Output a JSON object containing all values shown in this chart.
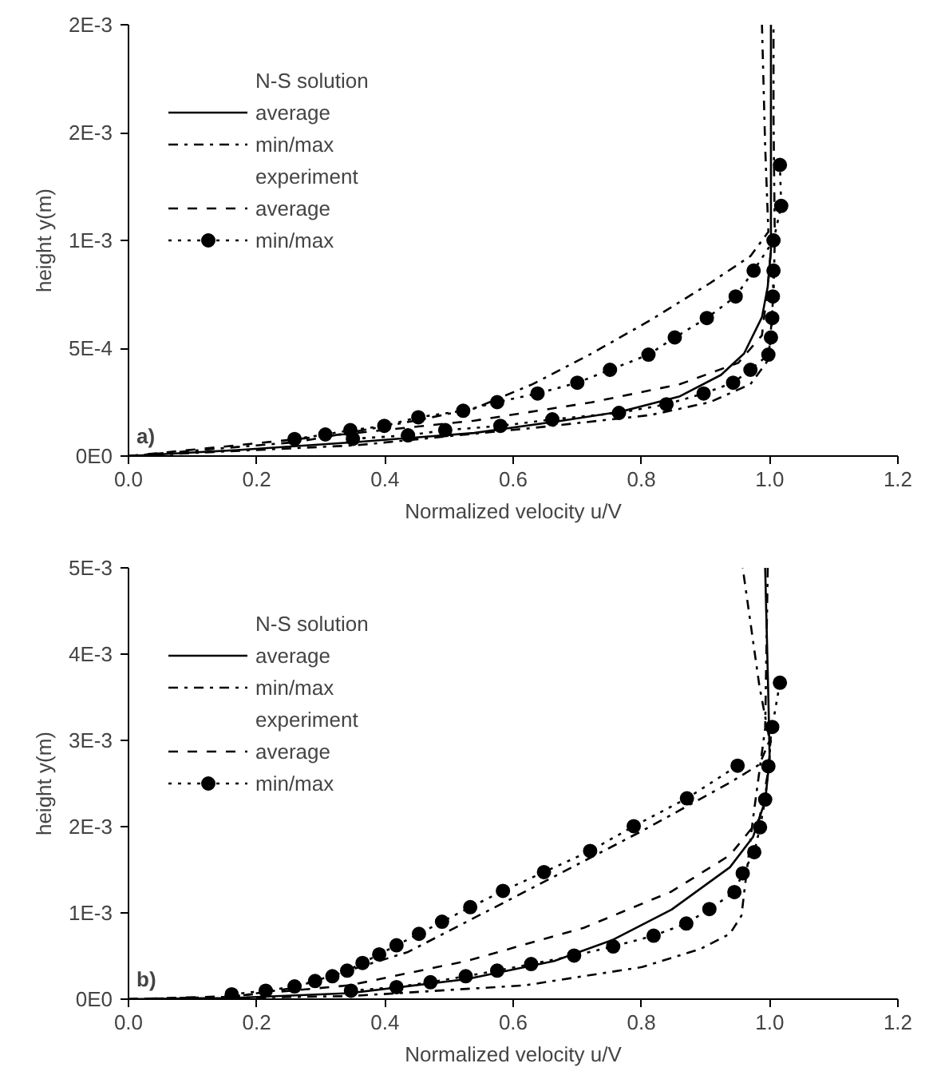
{
  "chart_data": [
    {
      "type": "line",
      "xlabel": "Normalized velocity u/V",
      "ylabel": "height y(m)",
      "annotations": [
        "N-S solution",
        "experiment",
        "a)"
      ],
      "xlim": [
        0,
        1.2
      ],
      "ylim": [
        0,
        0.002
      ],
      "xticks": [
        {
          "value": 0,
          "label": "0.0"
        },
        {
          "value": 0.2,
          "label": "0.2"
        },
        {
          "value": 0.4,
          "label": "0.4"
        },
        {
          "value": 0.6,
          "label": "0.6"
        },
        {
          "value": 0.8,
          "label": "0.8"
        },
        {
          "value": 1.0,
          "label": "1.0"
        },
        {
          "value": 1.2,
          "label": "1.2"
        }
      ],
      "yticks": [
        {
          "value": 0,
          "label": "0E0"
        },
        {
          "value": 0.0005,
          "label": "5E-4"
        },
        {
          "value": 0.001,
          "label": "1E-3"
        },
        {
          "value": 0.0015,
          "label": "2E-3"
        },
        {
          "value": 0.002,
          "label": "2E-3"
        }
      ],
      "legend": "top left",
      "grid": false,
      "series": [
        {
          "name": "average",
          "color": "#000000",
          "line_style": "solid",
          "marker": "none",
          "x": [
            0,
            0.17,
            0.355,
            0.539,
            0.676,
            0.768,
            0.86,
            0.924,
            0.96,
            0.988,
            0.997,
            1.002,
            1.002,
            1.002
          ],
          "values": [
            0,
            2.8e-05,
            6.5e-05,
            0.000107,
            0.000164,
            0.000206,
            0.000277,
            0.000376,
            0.000475,
            0.000644,
            0.000785,
            0.000955,
            0.00129,
            0.002
          ]
        },
        {
          "name": "min/max",
          "color": "#000000",
          "line_style": "dashdot",
          "marker": "none",
          "x": [
            0,
            0.263,
            0.447,
            0.539,
            0.63,
            0.722,
            0.814,
            0.906,
            0.97,
            0.998,
            0.993,
            0.988
          ],
          "values": [
            0,
            6.5e-05,
            0.000164,
            0.00022,
            0.000333,
            0.000475,
            0.00063,
            0.0008,
            0.000927,
            0.00104,
            0.001435,
            0.002
          ]
        },
        {
          "color": "#000000",
          "line_style": "dashdot",
          "marker": "none",
          "x": [
            0,
            0.355,
            0.63,
            0.814,
            0.906,
            0.97,
            0.998,
            1.006,
            1.008,
            1.006,
            1.006
          ],
          "values": [
            0,
            5e-05,
            0.00013,
            0.00019,
            0.000249,
            0.000333,
            0.000446,
            0.00073,
            0.00101,
            0.00158,
            0.002
          ]
        },
        {
          "name": "average",
          "color": "#000000",
          "line_style": "dashed",
          "marker": "none",
          "x": [
            0,
            0.17,
            0.355,
            0.539,
            0.722,
            0.86,
            0.951,
            0.988,
            0.997,
            1.002
          ],
          "values": [
            0,
            5e-05,
            0.000107,
            0.000164,
            0.000249,
            0.000333,
            0.000432,
            0.00056,
            0.000785,
            0.000955
          ]
        },
        {
          "name": "min/max",
          "color": "#000000",
          "line_style": "dotted",
          "marker": "circle",
          "x": [
            0.259,
            0.307,
            0.346,
            0.399,
            0.452,
            0.522,
            0.575,
            0.638,
            0.7,
            0.751,
            0.811,
            0.852,
            0.902,
            0.947,
            0.975,
            1.006,
            1.018,
            1.016
          ],
          "values": [
            7.9e-05,
            0.0001,
            0.00012,
            0.00014,
            0.00018,
            0.00021,
            0.00025,
            0.00029,
            0.00034,
            0.0004,
            0.00047,
            0.00055,
            0.00064,
            0.00074,
            0.00086,
            0.001,
            0.00116,
            0.00135
          ]
        },
        {
          "color": "#000000",
          "line_style": "dotted",
          "marker": "circle",
          "x": [
            0.35,
            0.436,
            0.494,
            0.58,
            0.661,
            0.765,
            0.839,
            0.897,
            0.943,
            0.97,
            0.998,
            1.002,
            1.004,
            1.005,
            1.006
          ],
          "values": [
            8e-05,
            9.6e-05,
            0.00012,
            0.00014,
            0.00017,
            0.0002,
            0.00024,
            0.00029,
            0.00034,
            0.0004,
            0.00047,
            0.00055,
            0.00064,
            0.00074,
            0.00086
          ]
        }
      ]
    },
    {
      "type": "line",
      "xlabel": "Normalized velocity u/V",
      "ylabel": "height y(m)",
      "annotations": [
        "N-S solution",
        "experiment",
        "b)"
      ],
      "xlim": [
        0,
        1.2
      ],
      "ylim": [
        0,
        0.005
      ],
      "xticks": [
        {
          "value": 0,
          "label": "0.0"
        },
        {
          "value": 0.2,
          "label": "0.2"
        },
        {
          "value": 0.4,
          "label": "0.4"
        },
        {
          "value": 0.6,
          "label": "0.6"
        },
        {
          "value": 0.8,
          "label": "0.8"
        },
        {
          "value": 1.0,
          "label": "1.0"
        },
        {
          "value": 1.2,
          "label": "1.2"
        }
      ],
      "yticks": [
        {
          "value": 0,
          "label": "0E0"
        },
        {
          "value": 0.001,
          "label": "1E-3"
        },
        {
          "value": 0.002,
          "label": "2E-3"
        },
        {
          "value": 0.003,
          "label": "3E-3"
        },
        {
          "value": 0.004,
          "label": "4E-3"
        },
        {
          "value": 0.005,
          "label": "5E-3"
        }
      ],
      "legend": "top left",
      "grid": false,
      "series": [
        {
          "name": "average",
          "color": "#000000",
          "line_style": "solid",
          "marker": "none",
          "x": [
            0,
            0.162,
            0.345,
            0.527,
            0.664,
            0.755,
            0.847,
            0.938,
            0.974,
            0.993,
            1.0,
            0.998,
            0.993
          ],
          "values": [
            0,
            1.4e-05,
            7e-05,
            0.000231,
            0.000442,
            0.000687,
            0.001038,
            0.001529,
            0.001879,
            0.0023,
            0.00279,
            0.00349,
            0.005
          ]
        },
        {
          "name": "min/max",
          "color": "#000000",
          "line_style": "dashdot",
          "marker": "none",
          "x": [
            0,
            0.162,
            0.254,
            0.436,
            0.619,
            0.801,
            0.938,
            0.984,
            1.0,
            0.984,
            0.958
          ],
          "values": [
            0,
            2.8e-05,
            0.000126,
            0.000547,
            0.001248,
            0.00195,
            0.00251,
            0.00272,
            0.003,
            0.00363,
            0.005
          ]
        },
        {
          "color": "#000000",
          "line_style": "dashdot",
          "marker": "none",
          "x": [
            0,
            0.345,
            0.619,
            0.801,
            0.892,
            0.938,
            0.956,
            0.974,
            0.993,
            0.997
          ],
          "values": [
            0,
            3.5e-05,
            0.000161,
            0.000372,
            0.000582,
            0.000757,
            0.000968,
            0.00209,
            0.00314,
            0.005
          ]
        },
        {
          "name": "average",
          "color": "#000000",
          "line_style": "dashed",
          "marker": "none",
          "x": [
            0,
            0.162,
            0.345,
            0.527,
            0.71,
            0.847,
            0.938,
            0.984,
            0.998,
            1.002
          ],
          "values": [
            0,
            3.5e-05,
            0.000161,
            0.000442,
            0.000827,
            0.001248,
            0.001669,
            0.00209,
            0.00265,
            0.00307
          ]
        },
        {
          "name": "min/max",
          "color": "#000000",
          "line_style": "dotted",
          "marker": "circle",
          "x": [
            0.161,
            0.214,
            0.259,
            0.291,
            0.318,
            0.341,
            0.365,
            0.391,
            0.418,
            0.453,
            0.489,
            0.533,
            0.584,
            0.648,
            0.72,
            0.788,
            0.871,
            0.95
          ],
          "values": [
            5.6e-05,
            9.8e-05,
            0.000147,
            0.00021,
            0.000266,
            0.00033,
            0.00042,
            0.000519,
            0.000624,
            0.000757,
            0.000898,
            0.001066,
            0.001255,
            0.001473,
            0.001718,
            0.002005,
            0.002328,
            0.002707
          ]
        },
        {
          "color": "#000000",
          "line_style": "dotted",
          "marker": "circle",
          "x": [
            0.347,
            0.418,
            0.471,
            0.526,
            0.575,
            0.628,
            0.695,
            0.756,
            0.819,
            0.87,
            0.906,
            0.945,
            0.958,
            0.976,
            0.985,
            0.993,
            0.998,
            1.004,
            1.016
          ],
          "values": [
            9.8e-05,
            0.00014,
            0.000196,
            0.000266,
            0.00033,
            0.000407,
            0.000505,
            0.00061,
            0.000736,
            0.000877,
            0.001045,
            0.001241,
            0.001459,
            0.001704,
            0.001992,
            0.002314,
            0.0027,
            0.003156,
            0.003668
          ]
        }
      ]
    }
  ]
}
